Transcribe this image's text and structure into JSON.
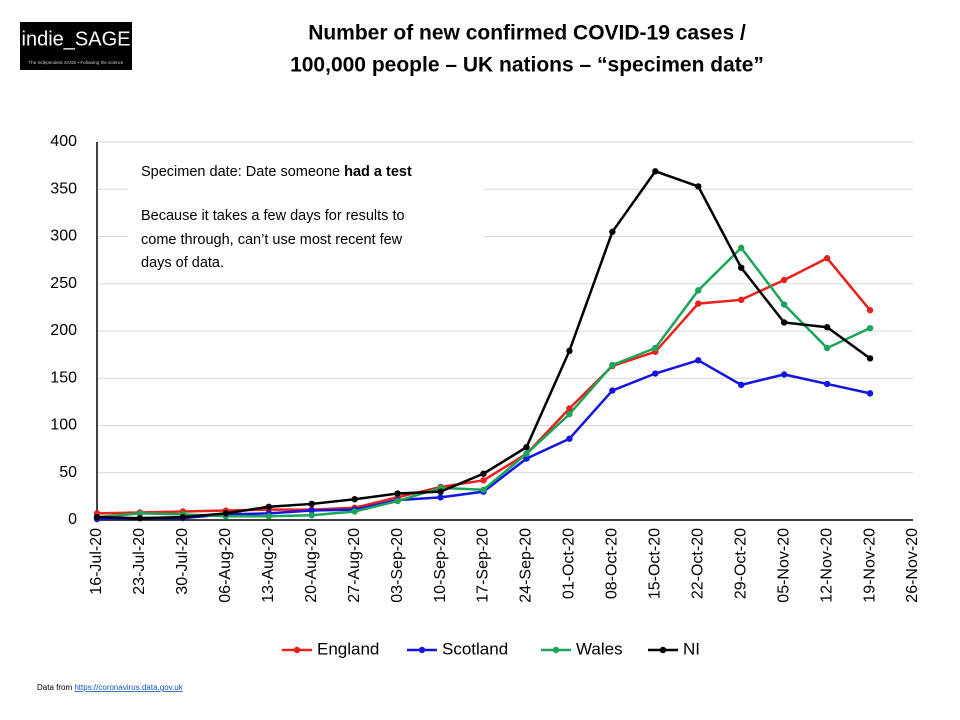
{
  "logo": {
    "name": "indie_SAGE",
    "tagline": "The Independent SAGE • Following the science"
  },
  "footer": {
    "prefix": "Data from",
    "link": "https://coronavirus.data.gov.uk"
  },
  "chart_data": {
    "type": "line",
    "title": [
      "Number of new confirmed COVID-19 cases /",
      "100,000 people – UK nations – “specimen date”"
    ],
    "annotation": {
      "first_line": "Specimen date: Date someone ",
      "first_line_bold": "had a test",
      "lines": [
        "Because it takes a few days for results to",
        "come through, can’t use most recent few",
        "days of data."
      ]
    },
    "categories": [
      "16-Jul-20",
      "23-Jul-20",
      "30-Jul-20",
      "06-Aug-20",
      "13-Aug-20",
      "20-Aug-20",
      "27-Aug-20",
      "03-Sep-20",
      "10-Sep-20",
      "17-Sep-20",
      "24-Sep-20",
      "01-Oct-20",
      "08-Oct-20",
      "15-Oct-20",
      "22-Oct-20",
      "29-Oct-20",
      "05-Nov-20",
      "12-Nov-20",
      "19-Nov-20",
      "26-Nov-20"
    ],
    "series": [
      {
        "name": "England",
        "color": "#e8211d",
        "values": [
          7,
          8,
          9,
          10,
          11,
          11,
          13,
          24,
          35,
          42,
          70,
          118,
          163,
          178,
          229,
          233,
          254,
          277,
          222,
          null
        ]
      },
      {
        "name": "Scotland",
        "color": "#1515e0",
        "values": [
          1,
          2,
          2,
          6,
          7,
          10,
          11,
          21,
          24,
          30,
          65,
          86,
          137,
          155,
          169,
          143,
          154,
          144,
          134,
          null
        ]
      },
      {
        "name": "Wales",
        "color": "#1aa55a",
        "values": [
          3,
          7,
          6,
          4,
          4,
          5,
          9,
          20,
          34,
          32,
          70,
          112,
          164,
          182,
          243,
          288,
          228,
          182,
          203,
          null
        ]
      },
      {
        "name": "NI",
        "color": "#000000",
        "values": [
          3,
          2,
          3,
          7,
          14,
          17,
          22,
          28,
          30,
          49,
          77,
          179,
          305,
          369,
          353,
          267,
          209,
          204,
          171,
          null
        ]
      }
    ],
    "ylim": [
      0,
      400
    ],
    "yticks": [
      0,
      50,
      100,
      150,
      200,
      250,
      300,
      350,
      400
    ],
    "grid": true,
    "legend": "bottom"
  }
}
